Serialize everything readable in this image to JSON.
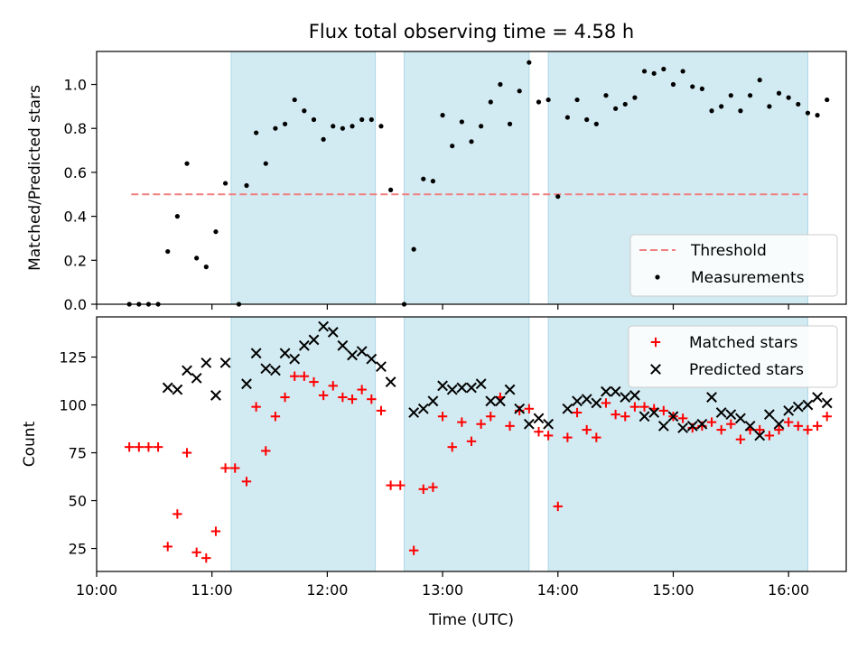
{
  "title": "Flux total observing time = 4.58 h",
  "colors": {
    "band": "#add8e6",
    "threshold": "#f08080",
    "measurement": "#000000",
    "matched": "#ff0000",
    "predicted": "#000000"
  },
  "chart_data": [
    {
      "type": "scatter",
      "ylabel": "Matched/Predicted stars",
      "xlim": [
        "10:00",
        "16:30"
      ],
      "ylim": [
        0,
        1.15
      ],
      "yticks": [
        "0.0",
        "0.2",
        "0.4",
        "0.6",
        "0.8",
        "1.0"
      ],
      "legend_position": "lower-right",
      "shaded_intervals": [
        [
          "11:10",
          "12:25"
        ],
        [
          "12:40",
          "13:45"
        ],
        [
          "13:55",
          "16:10"
        ]
      ],
      "threshold": {
        "name": "Threshold",
        "value": 0.5,
        "x_range": [
          "10:18",
          "16:10"
        ]
      },
      "series": [
        {
          "name": "Measurements",
          "points": [
            [
              "10:17",
              0.0
            ],
            [
              "10:22",
              0.0
            ],
            [
              "10:27",
              0.0
            ],
            [
              "10:32",
              0.0
            ],
            [
              "10:37",
              0.24
            ],
            [
              "10:42",
              0.4
            ],
            [
              "10:47",
              0.64
            ],
            [
              "10:52",
              0.21
            ],
            [
              "10:57",
              0.17
            ],
            [
              "11:02",
              0.33
            ],
            [
              "11:07",
              0.55
            ],
            [
              "11:14",
              0.0
            ],
            [
              "11:18",
              0.54
            ],
            [
              "11:23",
              0.78
            ],
            [
              "11:28",
              0.64
            ],
            [
              "11:33",
              0.8
            ],
            [
              "11:38",
              0.82
            ],
            [
              "11:43",
              0.93
            ],
            [
              "11:48",
              0.88
            ],
            [
              "11:53",
              0.84
            ],
            [
              "11:58",
              0.75
            ],
            [
              "12:03",
              0.81
            ],
            [
              "12:08",
              0.8
            ],
            [
              "12:13",
              0.81
            ],
            [
              "12:18",
              0.84
            ],
            [
              "12:23",
              0.84
            ],
            [
              "12:28",
              0.81
            ],
            [
              "12:33",
              0.52
            ],
            [
              "12:40",
              0.0
            ],
            [
              "12:45",
              0.25
            ],
            [
              "12:50",
              0.57
            ],
            [
              "12:55",
              0.56
            ],
            [
              "13:00",
              0.86
            ],
            [
              "13:05",
              0.72
            ],
            [
              "13:10",
              0.83
            ],
            [
              "13:15",
              0.74
            ],
            [
              "13:20",
              0.81
            ],
            [
              "13:25",
              0.92
            ],
            [
              "13:30",
              1.0
            ],
            [
              "13:35",
              0.82
            ],
            [
              "13:40",
              0.97
            ],
            [
              "13:45",
              1.1
            ],
            [
              "13:50",
              0.92
            ],
            [
              "13:55",
              0.93
            ],
            [
              "14:00",
              0.49
            ],
            [
              "14:05",
              0.85
            ],
            [
              "14:10",
              0.93
            ],
            [
              "14:15",
              0.84
            ],
            [
              "14:20",
              0.82
            ],
            [
              "14:25",
              0.95
            ],
            [
              "14:30",
              0.89
            ],
            [
              "14:35",
              0.91
            ],
            [
              "14:40",
              0.94
            ],
            [
              "14:45",
              1.06
            ],
            [
              "14:50",
              1.05
            ],
            [
              "14:55",
              1.07
            ],
            [
              "15:00",
              1.0
            ],
            [
              "15:05",
              1.06
            ],
            [
              "15:10",
              0.99
            ],
            [
              "15:15",
              0.98
            ],
            [
              "15:20",
              0.88
            ],
            [
              "15:25",
              0.9
            ],
            [
              "15:30",
              0.95
            ],
            [
              "15:35",
              0.88
            ],
            [
              "15:40",
              0.95
            ],
            [
              "15:45",
              1.02
            ],
            [
              "15:50",
              0.9
            ],
            [
              "15:55",
              0.96
            ],
            [
              "16:00",
              0.94
            ],
            [
              "16:05",
              0.91
            ],
            [
              "16:10",
              0.87
            ],
            [
              "16:15",
              0.86
            ],
            [
              "16:20",
              0.93
            ]
          ]
        }
      ]
    },
    {
      "type": "scatter",
      "ylabel": "Count",
      "xlabel": "Time (UTC)",
      "xlim": [
        "10:00",
        "16:30"
      ],
      "ylim": [
        13,
        146
      ],
      "yticks": [
        "25",
        "50",
        "75",
        "100",
        "125"
      ],
      "xticks": [
        "10:00",
        "11:00",
        "12:00",
        "13:00",
        "14:00",
        "15:00",
        "16:00"
      ],
      "legend_position": "upper-right",
      "shaded_intervals": [
        [
          "11:10",
          "12:25"
        ],
        [
          "12:40",
          "13:45"
        ],
        [
          "13:55",
          "16:10"
        ]
      ],
      "series": [
        {
          "name": "Matched stars",
          "marker": "plus",
          "points": [
            [
              "10:17",
              78
            ],
            [
              "10:22",
              78
            ],
            [
              "10:27",
              78
            ],
            [
              "10:32",
              78
            ],
            [
              "10:37",
              26
            ],
            [
              "10:42",
              43
            ],
            [
              "10:47",
              75
            ],
            [
              "10:52",
              23
            ],
            [
              "10:57",
              20
            ],
            [
              "11:02",
              34
            ],
            [
              "11:07",
              67
            ],
            [
              "11:12",
              67
            ],
            [
              "11:18",
              60
            ],
            [
              "11:23",
              99
            ],
            [
              "11:28",
              76
            ],
            [
              "11:33",
              94
            ],
            [
              "11:38",
              104
            ],
            [
              "11:43",
              115
            ],
            [
              "11:48",
              115
            ],
            [
              "11:53",
              112
            ],
            [
              "11:58",
              105
            ],
            [
              "12:03",
              110
            ],
            [
              "12:08",
              104
            ],
            [
              "12:13",
              103
            ],
            [
              "12:18",
              108
            ],
            [
              "12:23",
              103
            ],
            [
              "12:28",
              97
            ],
            [
              "12:33",
              58
            ],
            [
              "12:38",
              58
            ],
            [
              "12:45",
              24
            ],
            [
              "12:50",
              56
            ],
            [
              "12:55",
              57
            ],
            [
              "13:00",
              94
            ],
            [
              "13:05",
              78
            ],
            [
              "13:10",
              91
            ],
            [
              "13:15",
              81
            ],
            [
              "13:20",
              90
            ],
            [
              "13:25",
              94
            ],
            [
              "13:30",
              104
            ],
            [
              "13:35",
              89
            ],
            [
              "13:40",
              97
            ],
            [
              "13:45",
              98
            ],
            [
              "13:50",
              86
            ],
            [
              "13:55",
              84
            ],
            [
              "14:00",
              47
            ],
            [
              "14:05",
              83
            ],
            [
              "14:10",
              96
            ],
            [
              "14:15",
              87
            ],
            [
              "14:20",
              83
            ],
            [
              "14:25",
              101
            ],
            [
              "14:30",
              95
            ],
            [
              "14:35",
              94
            ],
            [
              "14:40",
              99
            ],
            [
              "14:45",
              99
            ],
            [
              "14:50",
              98
            ],
            [
              "14:55",
              97
            ],
            [
              "15:00",
              94
            ],
            [
              "15:05",
              93
            ],
            [
              "15:10",
              88
            ],
            [
              "15:15",
              89
            ],
            [
              "15:20",
              91
            ],
            [
              "15:25",
              87
            ],
            [
              "15:30",
              90
            ],
            [
              "15:35",
              82
            ],
            [
              "15:40",
              87
            ],
            [
              "15:45",
              87
            ],
            [
              "15:50",
              84
            ],
            [
              "15:55",
              87
            ],
            [
              "16:00",
              91
            ],
            [
              "16:05",
              89
            ],
            [
              "16:10",
              87
            ],
            [
              "16:15",
              89
            ],
            [
              "16:20",
              94
            ]
          ]
        },
        {
          "name": "Predicted stars",
          "marker": "x",
          "points": [
            [
              "10:37",
              109
            ],
            [
              "10:42",
              108
            ],
            [
              "10:47",
              118
            ],
            [
              "10:52",
              114
            ],
            [
              "10:57",
              122
            ],
            [
              "11:02",
              105
            ],
            [
              "11:07",
              122
            ],
            [
              "11:18",
              111
            ],
            [
              "11:23",
              127
            ],
            [
              "11:28",
              119
            ],
            [
              "11:33",
              118
            ],
            [
              "11:38",
              127
            ],
            [
              "11:43",
              124
            ],
            [
              "11:48",
              131
            ],
            [
              "11:53",
              134
            ],
            [
              "11:58",
              141
            ],
            [
              "12:03",
              138
            ],
            [
              "12:08",
              131
            ],
            [
              "12:13",
              126
            ],
            [
              "12:18",
              128
            ],
            [
              "12:23",
              124
            ],
            [
              "12:28",
              120
            ],
            [
              "12:33",
              112
            ],
            [
              "12:45",
              96
            ],
            [
              "12:50",
              98
            ],
            [
              "12:55",
              102
            ],
            [
              "13:00",
              110
            ],
            [
              "13:05",
              108
            ],
            [
              "13:10",
              109
            ],
            [
              "13:15",
              109
            ],
            [
              "13:20",
              111
            ],
            [
              "13:25",
              102
            ],
            [
              "13:30",
              102
            ],
            [
              "13:35",
              108
            ],
            [
              "13:40",
              98
            ],
            [
              "13:45",
              90
            ],
            [
              "13:50",
              93
            ],
            [
              "13:55",
              90
            ],
            [
              "14:05",
              98
            ],
            [
              "14:10",
              102
            ],
            [
              "14:15",
              103
            ],
            [
              "14:20",
              101
            ],
            [
              "14:25",
              107
            ],
            [
              "14:30",
              107
            ],
            [
              "14:35",
              104
            ],
            [
              "14:40",
              105
            ],
            [
              "14:45",
              94
            ],
            [
              "14:50",
              96
            ],
            [
              "14:55",
              89
            ],
            [
              "15:00",
              94
            ],
            [
              "15:05",
              88
            ],
            [
              "15:10",
              89
            ],
            [
              "15:15",
              90
            ],
            [
              "15:20",
              104
            ],
            [
              "15:25",
              96
            ],
            [
              "15:30",
              95
            ],
            [
              "15:35",
              93
            ],
            [
              "15:40",
              89
            ],
            [
              "15:45",
              84
            ],
            [
              "15:50",
              95
            ],
            [
              "15:55",
              90
            ],
            [
              "16:00",
              97
            ],
            [
              "16:05",
              99
            ],
            [
              "16:10",
              100
            ],
            [
              "16:15",
              104
            ],
            [
              "16:20",
              101
            ]
          ]
        }
      ]
    }
  ]
}
